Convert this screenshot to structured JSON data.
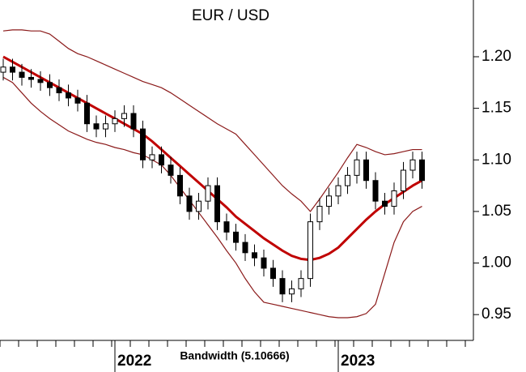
{
  "chart_data": {
    "type": "candlestick",
    "title": "EUR / USD",
    "annotation": "Bandwidth (5.10666)",
    "categories": [
      null,
      null,
      null,
      null,
      null,
      null,
      null,
      null,
      null,
      null,
      null,
      null,
      "2022",
      null,
      null,
      null,
      null,
      null,
      null,
      null,
      null,
      null,
      null,
      null,
      null,
      null,
      null,
      null,
      null,
      null,
      null,
      null,
      null,
      null,
      null,
      null,
      "2023",
      null,
      null,
      null,
      null,
      null,
      null,
      null,
      null,
      null
    ],
    "open": [
      1.185,
      1.19,
      1.185,
      1.18,
      1.178,
      1.175,
      1.17,
      1.165,
      1.16,
      1.155,
      1.135,
      1.13,
      1.135,
      1.14,
      1.145,
      1.13,
      1.1,
      1.105,
      1.095,
      1.085,
      1.065,
      1.05,
      1.06,
      1.075,
      1.04,
      1.03,
      1.02,
      1.01,
      1.005,
      0.995,
      0.985,
      0.97,
      0.975,
      0.985,
      1.04,
      1.055,
      1.065,
      1.075,
      1.085,
      1.1,
      1.08,
      1.06,
      1.055,
      1.07,
      1.09,
      1.1
    ],
    "high": [
      1.198,
      1.198,
      1.193,
      1.188,
      1.186,
      1.183,
      1.178,
      1.173,
      1.168,
      1.163,
      1.143,
      1.143,
      1.148,
      1.153,
      1.153,
      1.138,
      1.113,
      1.113,
      1.103,
      1.093,
      1.073,
      1.068,
      1.083,
      1.083,
      1.048,
      1.038,
      1.028,
      1.018,
      1.013,
      1.003,
      0.993,
      0.983,
      0.993,
      1.048,
      1.063,
      1.073,
      1.083,
      1.093,
      1.108,
      1.108,
      1.088,
      1.068,
      1.078,
      1.098,
      1.108,
      1.108
    ],
    "low": [
      1.177,
      1.177,
      1.172,
      1.17,
      1.167,
      1.162,
      1.157,
      1.152,
      1.147,
      1.127,
      1.122,
      1.122,
      1.127,
      1.132,
      1.122,
      1.092,
      1.092,
      1.087,
      1.077,
      1.057,
      1.042,
      1.042,
      1.052,
      1.032,
      1.022,
      1.012,
      1.002,
      0.997,
      0.987,
      0.977,
      0.962,
      0.962,
      0.967,
      0.977,
      1.032,
      1.047,
      1.057,
      1.067,
      1.077,
      1.072,
      1.052,
      1.047,
      1.047,
      1.062,
      1.082,
      1.072
    ],
    "close": [
      1.19,
      1.185,
      1.18,
      1.178,
      1.175,
      1.17,
      1.165,
      1.16,
      1.155,
      1.135,
      1.13,
      1.135,
      1.14,
      1.145,
      1.13,
      1.1,
      1.105,
      1.095,
      1.085,
      1.065,
      1.05,
      1.06,
      1.075,
      1.04,
      1.03,
      1.02,
      1.01,
      1.005,
      0.995,
      0.985,
      0.97,
      0.975,
      0.985,
      1.04,
      1.055,
      1.065,
      1.075,
      1.085,
      1.1,
      1.08,
      1.06,
      1.055,
      1.07,
      1.09,
      1.1,
      1.08
    ],
    "upper_band": {
      "color": "#8b1a1a",
      "values": [
        1.225,
        1.226,
        1.226,
        1.225,
        1.225,
        1.222,
        1.215,
        1.208,
        1.203,
        1.2,
        1.196,
        1.192,
        1.188,
        1.184,
        1.18,
        1.176,
        1.173,
        1.17,
        1.165,
        1.159,
        1.153,
        1.147,
        1.141,
        1.135,
        1.13,
        1.125,
        1.115,
        1.105,
        1.095,
        1.085,
        1.075,
        1.067,
        1.06,
        1.05,
        1.062,
        1.075,
        1.088,
        1.102,
        1.115,
        1.112,
        1.108,
        1.105,
        1.106,
        1.108,
        1.11,
        1.11
      ]
    },
    "middle_band": {
      "color": "#c00000",
      "values": [
        1.2,
        1.195,
        1.19,
        1.185,
        1.18,
        1.175,
        1.17,
        1.165,
        1.16,
        1.155,
        1.15,
        1.145,
        1.14,
        1.135,
        1.13,
        1.125,
        1.118,
        1.11,
        1.102,
        1.094,
        1.086,
        1.078,
        1.07,
        1.062,
        1.054,
        1.045,
        1.038,
        1.031,
        1.024,
        1.018,
        1.012,
        1.007,
        1.004,
        1.003,
        1.005,
        1.009,
        1.015,
        1.024,
        1.033,
        1.042,
        1.05,
        1.057,
        1.063,
        1.069,
        1.075,
        1.08
      ]
    },
    "lower_band": {
      "color": "#8b1a1a",
      "values": [
        1.18,
        1.175,
        1.165,
        1.155,
        1.147,
        1.14,
        1.134,
        1.128,
        1.124,
        1.12,
        1.117,
        1.115,
        1.112,
        1.11,
        1.107,
        1.105,
        1.1,
        1.095,
        1.085,
        1.073,
        1.061,
        1.049,
        1.037,
        1.025,
        1.012,
        1.0,
        0.985,
        0.972,
        0.962,
        0.96,
        0.958,
        0.956,
        0.954,
        0.952,
        0.95,
        0.948,
        0.947,
        0.947,
        0.948,
        0.951,
        0.96,
        0.99,
        1.02,
        1.04,
        1.05,
        1.055
      ]
    },
    "ylim": [
      0.925,
      1.255
    ],
    "yticks": [
      0.95,
      {
        "value": 1,
        "label": "1.00"
      },
      1.05,
      {
        "value": 1.1,
        "label": "1.10"
      },
      1.15,
      {
        "value": 1.2,
        "label": "1.20"
      }
    ]
  }
}
